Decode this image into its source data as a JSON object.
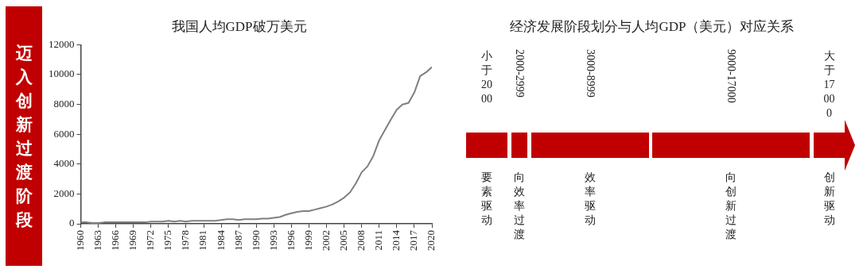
{
  "chart_data": [
    {
      "type": "line",
      "title": "我国人均GDP破万美元",
      "annotations": [
        "迈入创新过渡阶段"
      ],
      "x": [
        1960,
        1961,
        1962,
        1963,
        1964,
        1965,
        1966,
        1967,
        1968,
        1969,
        1970,
        1971,
        1972,
        1973,
        1974,
        1975,
        1976,
        1977,
        1978,
        1979,
        1980,
        1981,
        1982,
        1983,
        1984,
        1985,
        1986,
        1987,
        1988,
        1989,
        1990,
        1991,
        1992,
        1993,
        1994,
        1995,
        1996,
        1997,
        1998,
        1999,
        2000,
        2001,
        2002,
        2003,
        2004,
        2005,
        2006,
        2007,
        2008,
        2009,
        2010,
        2011,
        2012,
        2013,
        2014,
        2015,
        2016,
        2017,
        2018,
        2019,
        2020
      ],
      "series": [
        {
          "color": "#7f7f7f",
          "values": [
            100,
            100,
            50,
            50,
            100,
            100,
            100,
            100,
            100,
            100,
            100,
            100,
            150,
            150,
            150,
            200,
            150,
            200,
            150,
            200,
            200,
            200,
            200,
            200,
            250,
            300,
            300,
            250,
            300,
            300,
            300,
            350,
            350,
            400,
            450,
            600,
            700,
            800,
            850,
            850,
            950,
            1050,
            1150,
            1300,
            1500,
            1750,
            2100,
            2700,
            3450,
            3850,
            4550,
            5600,
            6300,
            7000,
            7650,
            8000,
            8100,
            8800,
            9900,
            10150,
            10500
          ]
        }
      ],
      "xlim": [
        1960,
        2020
      ],
      "xticks": [
        1960,
        1963,
        1966,
        1969,
        1972,
        1975,
        1978,
        1981,
        1984,
        1987,
        1990,
        1993,
        1996,
        1999,
        2002,
        2005,
        2008,
        2011,
        2014,
        2017,
        2020
      ],
      "ylim": [
        0,
        12000
      ],
      "yticks": [
        0,
        2000,
        4000,
        6000,
        8000,
        10000,
        12000
      ],
      "grid": false,
      "legend": false,
      "marker": "none",
      "line_style": "solid"
    },
    {
      "type": "other",
      "title": "经济发展阶段划分与人均GDP（美元）对应关系",
      "annotations": [
        "小于2000",
        "要素驱动",
        "2000-2999",
        "向效率过渡",
        "3000-8999",
        "效率驱动",
        "9000-17000",
        "向创新过渡",
        "大于17000",
        "创新驱动"
      ]
    }
  ]
}
